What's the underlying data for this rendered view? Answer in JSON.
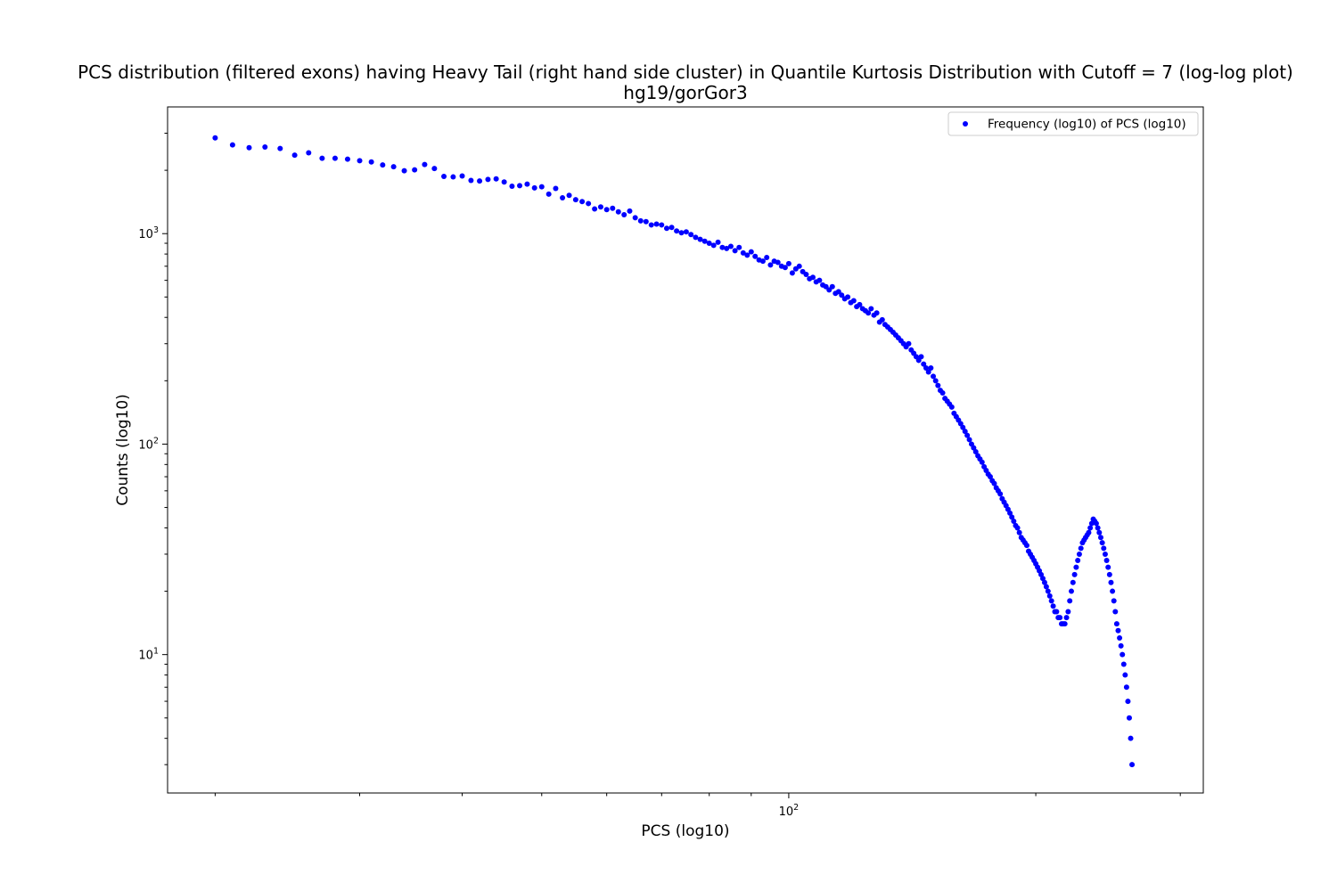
{
  "chart_data": {
    "type": "scatter",
    "title": "PCS distribution (filtered exons) having Heavy Tail (right hand side cluster) in Quantile Kurtosis Distribution with Cutoff = 7 (log-log plot)",
    "subtitle": "hg19/gorGor3",
    "xlabel": "PCS (log10)",
    "ylabel": "Counts (log10)",
    "xscale": "log",
    "yscale": "log",
    "xlim": [
      17.5,
      320
    ],
    "ylim": [
      2.2,
      4000
    ],
    "grid": false,
    "legend_position": "upper right",
    "marker_color": "#0000ff",
    "x_major_ticks": [
      {
        "value": 100,
        "base": "10",
        "exp": "2"
      }
    ],
    "x_minor_ticks": [
      20,
      30,
      40,
      50,
      60,
      70,
      80,
      90,
      200,
      300
    ],
    "y_major_ticks": [
      {
        "value": 10,
        "base": "10",
        "exp": "1"
      },
      {
        "value": 100,
        "base": "10",
        "exp": "2"
      },
      {
        "value": 1000,
        "base": "10",
        "exp": "3"
      }
    ],
    "y_minor_ticks": [
      3,
      4,
      5,
      6,
      7,
      8,
      9,
      20,
      30,
      40,
      50,
      60,
      70,
      80,
      90,
      200,
      300,
      400,
      500,
      600,
      700,
      800,
      900,
      2000,
      3000
    ],
    "series": [
      {
        "name": "Frequency (log10) of PCS (log10)",
        "points": [
          [
            20,
            2850
          ],
          [
            21,
            2640
          ],
          [
            22,
            2560
          ],
          [
            23,
            2580
          ],
          [
            24,
            2540
          ],
          [
            25,
            2360
          ],
          [
            26,
            2420
          ],
          [
            27,
            2280
          ],
          [
            28,
            2280
          ],
          [
            29,
            2260
          ],
          [
            30,
            2220
          ],
          [
            31,
            2190
          ],
          [
            32,
            2120
          ],
          [
            33,
            2080
          ],
          [
            34,
            1990
          ],
          [
            35,
            2010
          ],
          [
            36,
            2130
          ],
          [
            37,
            2040
          ],
          [
            38,
            1870
          ],
          [
            39,
            1860
          ],
          [
            40,
            1880
          ],
          [
            41,
            1790
          ],
          [
            42,
            1780
          ],
          [
            43,
            1810
          ],
          [
            44,
            1820
          ],
          [
            45,
            1760
          ],
          [
            46,
            1680
          ],
          [
            47,
            1690
          ],
          [
            48,
            1720
          ],
          [
            49,
            1650
          ],
          [
            50,
            1670
          ],
          [
            51,
            1540
          ],
          [
            52,
            1640
          ],
          [
            53,
            1480
          ],
          [
            54,
            1520
          ],
          [
            55,
            1450
          ],
          [
            56,
            1420
          ],
          [
            57,
            1390
          ],
          [
            58,
            1310
          ],
          [
            59,
            1340
          ],
          [
            60,
            1300
          ],
          [
            61,
            1320
          ],
          [
            62,
            1270
          ],
          [
            63,
            1230
          ],
          [
            64,
            1280
          ],
          [
            65,
            1190
          ],
          [
            66,
            1150
          ],
          [
            67,
            1140
          ],
          [
            68,
            1100
          ],
          [
            69,
            1110
          ],
          [
            70,
            1100
          ],
          [
            71,
            1060
          ],
          [
            72,
            1070
          ],
          [
            73,
            1030
          ],
          [
            74,
            1010
          ],
          [
            75,
            1020
          ],
          [
            76,
            990
          ],
          [
            77,
            960
          ],
          [
            78,
            940
          ],
          [
            79,
            920
          ],
          [
            80,
            900
          ],
          [
            81,
            880
          ],
          [
            82,
            910
          ],
          [
            83,
            860
          ],
          [
            84,
            850
          ],
          [
            85,
            870
          ],
          [
            86,
            830
          ],
          [
            87,
            860
          ],
          [
            88,
            810
          ],
          [
            89,
            790
          ],
          [
            90,
            820
          ],
          [
            91,
            780
          ],
          [
            92,
            750
          ],
          [
            93,
            740
          ],
          [
            94,
            770
          ],
          [
            95,
            710
          ],
          [
            96,
            740
          ],
          [
            97,
            730
          ],
          [
            98,
            700
          ],
          [
            99,
            690
          ],
          [
            100,
            720
          ],
          [
            101,
            650
          ],
          [
            102,
            680
          ],
          [
            103,
            700
          ],
          [
            104,
            660
          ],
          [
            105,
            640
          ],
          [
            106,
            610
          ],
          [
            107,
            620
          ],
          [
            108,
            590
          ],
          [
            109,
            600
          ],
          [
            110,
            570
          ],
          [
            111,
            560
          ],
          [
            112,
            540
          ],
          [
            113,
            560
          ],
          [
            114,
            520
          ],
          [
            115,
            530
          ],
          [
            116,
            510
          ],
          [
            117,
            490
          ],
          [
            118,
            500
          ],
          [
            119,
            470
          ],
          [
            120,
            480
          ],
          [
            121,
            450
          ],
          [
            122,
            460
          ],
          [
            123,
            440
          ],
          [
            124,
            430
          ],
          [
            125,
            420
          ],
          [
            126,
            440
          ],
          [
            127,
            410
          ],
          [
            128,
            420
          ],
          [
            129,
            380
          ],
          [
            130,
            390
          ],
          [
            131,
            370
          ],
          [
            132,
            360
          ],
          [
            133,
            350
          ],
          [
            134,
            340
          ],
          [
            135,
            330
          ],
          [
            136,
            320
          ],
          [
            137,
            310
          ],
          [
            138,
            300
          ],
          [
            139,
            290
          ],
          [
            140,
            300
          ],
          [
            141,
            280
          ],
          [
            142,
            270
          ],
          [
            143,
            260
          ],
          [
            144,
            250
          ],
          [
            145,
            260
          ],
          [
            146,
            240
          ],
          [
            147,
            230
          ],
          [
            148,
            220
          ],
          [
            149,
            230
          ],
          [
            150,
            210
          ],
          [
            151,
            200
          ],
          [
            152,
            190
          ],
          [
            153,
            180
          ],
          [
            154,
            175
          ],
          [
            155,
            165
          ],
          [
            156,
            160
          ],
          [
            157,
            155
          ],
          [
            158,
            150
          ],
          [
            159,
            140
          ],
          [
            160,
            135
          ],
          [
            161,
            130
          ],
          [
            162,
            125
          ],
          [
            163,
            120
          ],
          [
            164,
            115
          ],
          [
            165,
            110
          ],
          [
            166,
            105
          ],
          [
            167,
            100
          ],
          [
            168,
            96
          ],
          [
            169,
            92
          ],
          [
            170,
            88
          ],
          [
            171,
            85
          ],
          [
            172,
            82
          ],
          [
            173,
            78
          ],
          [
            174,
            75
          ],
          [
            175,
            72
          ],
          [
            176,
            70
          ],
          [
            177,
            67
          ],
          [
            178,
            65
          ],
          [
            179,
            62
          ],
          [
            180,
            60
          ],
          [
            181,
            58
          ],
          [
            182,
            55
          ],
          [
            183,
            53
          ],
          [
            184,
            51
          ],
          [
            185,
            49
          ],
          [
            186,
            47
          ],
          [
            187,
            45
          ],
          [
            188,
            43
          ],
          [
            189,
            41
          ],
          [
            190,
            40
          ],
          [
            191,
            38
          ],
          [
            192,
            36
          ],
          [
            193,
            35
          ],
          [
            194,
            34
          ],
          [
            195,
            33
          ],
          [
            196,
            31
          ],
          [
            197,
            30
          ],
          [
            198,
            29
          ],
          [
            199,
            28
          ],
          [
            200,
            27
          ],
          [
            201,
            26
          ],
          [
            202,
            25
          ],
          [
            203,
            24
          ],
          [
            204,
            23
          ],
          [
            205,
            22
          ],
          [
            206,
            21
          ],
          [
            207,
            20
          ],
          [
            208,
            19
          ],
          [
            209,
            18
          ],
          [
            210,
            17
          ],
          [
            211,
            16
          ],
          [
            212,
            16
          ],
          [
            213,
            15
          ],
          [
            214,
            15
          ],
          [
            215,
            14
          ],
          [
            216,
            14
          ],
          [
            217,
            14
          ],
          [
            218,
            15
          ],
          [
            219,
            16
          ],
          [
            220,
            18
          ],
          [
            221,
            20
          ],
          [
            222,
            22
          ],
          [
            223,
            24
          ],
          [
            224,
            26
          ],
          [
            225,
            28
          ],
          [
            226,
            30
          ],
          [
            227,
            32
          ],
          [
            228,
            34
          ],
          [
            229,
            35
          ],
          [
            230,
            36
          ],
          [
            231,
            37
          ],
          [
            232,
            38
          ],
          [
            233,
            40
          ],
          [
            234,
            42
          ],
          [
            235,
            44
          ],
          [
            236,
            43
          ],
          [
            237,
            42
          ],
          [
            238,
            40
          ],
          [
            239,
            38
          ],
          [
            240,
            36
          ],
          [
            241,
            34
          ],
          [
            242,
            32
          ],
          [
            243,
            30
          ],
          [
            244,
            28
          ],
          [
            245,
            26
          ],
          [
            246,
            24
          ],
          [
            247,
            22
          ],
          [
            248,
            20
          ],
          [
            249,
            18
          ],
          [
            250,
            16
          ],
          [
            251,
            14
          ],
          [
            252,
            13
          ],
          [
            253,
            12
          ],
          [
            254,
            11
          ],
          [
            255,
            10
          ],
          [
            256,
            9
          ],
          [
            257,
            8
          ],
          [
            258,
            7
          ],
          [
            259,
            6
          ],
          [
            260,
            5
          ],
          [
            261,
            4
          ],
          [
            262,
            3
          ]
        ]
      }
    ]
  }
}
